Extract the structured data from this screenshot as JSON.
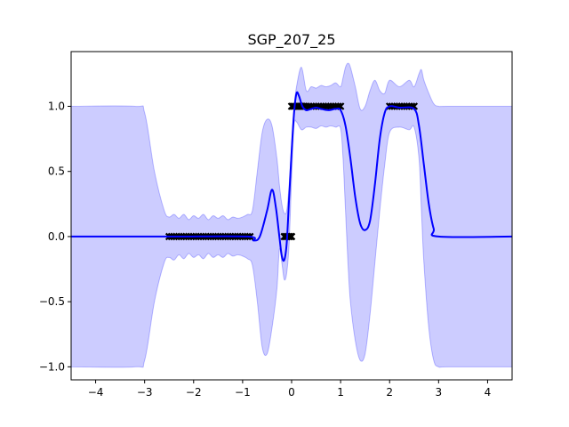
{
  "chart_data": {
    "type": "line",
    "title": "SGP_207_25",
    "xlabel": "",
    "ylabel": "",
    "xlim": [
      -4.5,
      4.5
    ],
    "ylim": [
      -1.1,
      1.42
    ],
    "grid": false,
    "xticks": [
      -4,
      -3,
      -2,
      -1,
      0,
      1,
      2,
      3,
      4
    ],
    "xtick_labels": [
      "−4",
      "−3",
      "−2",
      "−1",
      "0",
      "1",
      "2",
      "3",
      "4"
    ],
    "yticks": [
      -1.0,
      -0.5,
      0.0,
      0.5,
      1.0
    ],
    "ytick_labels": [
      "−1.0",
      "−0.5",
      "0.0",
      "0.5",
      "1.0"
    ],
    "colors": {
      "mean": "#0000ff",
      "band": "#0000ff",
      "points": "#000000"
    },
    "mean": {
      "x": [
        -4.5,
        -2.5,
        -0.9,
        -0.78,
        -0.65,
        -0.5,
        -0.4,
        -0.32,
        -0.25,
        -0.2,
        -0.15,
        -0.1,
        -0.05,
        0.0,
        0.05,
        0.1,
        0.15,
        0.22,
        0.3,
        0.4,
        0.5,
        0.6,
        0.75,
        0.9,
        1.0,
        1.1,
        1.2,
        1.3,
        1.4,
        1.5,
        1.6,
        1.7,
        1.8,
        1.9,
        2.0,
        2.2,
        2.5,
        2.6,
        2.7,
        2.8,
        2.9,
        3.0,
        4.5
      ],
      "y": [
        0.0,
        0.0,
        0.0,
        -0.03,
        0.0,
        0.2,
        0.36,
        0.22,
        0.0,
        -0.15,
        -0.18,
        -0.05,
        0.3,
        0.65,
        0.95,
        1.1,
        1.08,
        1.0,
        0.97,
        0.98,
        0.99,
        0.98,
        0.97,
        0.98,
        0.97,
        0.85,
        0.6,
        0.3,
        0.1,
        0.05,
        0.12,
        0.4,
        0.75,
        0.95,
        1.0,
        0.99,
        0.98,
        0.85,
        0.55,
        0.25,
        0.06,
        0.0,
        0.0
      ]
    },
    "band": {
      "x": [
        -4.5,
        -3.2,
        -3.0,
        -2.8,
        -2.6,
        -2.5,
        -2.4,
        -2.3,
        -2.2,
        -2.1,
        -2.0,
        -1.9,
        -1.8,
        -1.7,
        -1.6,
        -1.5,
        -1.4,
        -1.3,
        -1.2,
        -1.1,
        -1.0,
        -0.9,
        -0.8,
        -0.7,
        -0.6,
        -0.5,
        -0.4,
        -0.3,
        -0.25,
        -0.2,
        -0.15,
        -0.1,
        -0.05,
        0.0,
        0.05,
        0.1,
        0.2,
        0.3,
        0.4,
        0.5,
        0.6,
        0.7,
        0.8,
        0.9,
        1.0,
        1.05,
        1.1,
        1.15,
        1.2,
        1.3,
        1.4,
        1.5,
        1.6,
        1.7,
        1.8,
        1.9,
        2.0,
        2.2,
        2.4,
        2.5,
        2.6,
        2.65,
        2.7,
        2.8,
        2.9,
        3.0,
        3.2,
        4.5
      ],
      "upper": [
        1.0,
        1.0,
        0.95,
        0.5,
        0.2,
        0.15,
        0.17,
        0.14,
        0.17,
        0.13,
        0.16,
        0.14,
        0.17,
        0.13,
        0.16,
        0.14,
        0.16,
        0.13,
        0.15,
        0.14,
        0.15,
        0.17,
        0.2,
        0.5,
        0.8,
        0.9,
        0.85,
        0.6,
        0.4,
        0.25,
        0.18,
        0.2,
        0.4,
        0.7,
        1.0,
        1.15,
        1.3,
        1.12,
        1.15,
        1.14,
        1.16,
        1.15,
        1.16,
        1.18,
        1.15,
        1.22,
        1.3,
        1.33,
        1.3,
        1.15,
        0.98,
        1.0,
        1.12,
        1.2,
        1.12,
        1.1,
        1.2,
        1.15,
        1.2,
        1.15,
        1.25,
        1.28,
        1.2,
        1.1,
        1.02,
        1.0,
        1.0,
        1.0
      ],
      "lower": [
        -1.0,
        -1.0,
        -0.95,
        -0.5,
        -0.2,
        -0.16,
        -0.18,
        -0.14,
        -0.17,
        -0.13,
        -0.16,
        -0.14,
        -0.17,
        -0.13,
        -0.16,
        -0.14,
        -0.16,
        -0.13,
        -0.15,
        -0.14,
        -0.15,
        -0.17,
        -0.22,
        -0.5,
        -0.85,
        -0.9,
        -0.7,
        -0.4,
        -0.1,
        -0.2,
        -0.33,
        -0.28,
        -0.05,
        0.45,
        0.85,
        0.88,
        0.82,
        0.84,
        0.84,
        0.83,
        0.85,
        0.84,
        0.85,
        0.84,
        0.83,
        0.6,
        0.2,
        -0.2,
        -0.5,
        -0.8,
        -0.95,
        -0.9,
        -0.6,
        -0.2,
        0.2,
        0.55,
        0.8,
        0.84,
        0.82,
        0.84,
        0.6,
        0.2,
        -0.2,
        -0.7,
        -0.95,
        -1.0,
        -1.0,
        -1.0
      ]
    },
    "observations": {
      "x": [
        -2.5,
        -2.45,
        -2.4,
        -2.35,
        -2.3,
        -2.25,
        -2.2,
        -2.15,
        -2.1,
        -2.05,
        -2.0,
        -1.95,
        -1.9,
        -1.85,
        -1.8,
        -1.75,
        -1.7,
        -1.65,
        -1.6,
        -1.55,
        -1.5,
        -1.45,
        -1.4,
        -1.35,
        -1.3,
        -1.25,
        -1.2,
        -1.15,
        -1.1,
        -1.05,
        -1.0,
        -0.95,
        -0.9,
        -0.85,
        -0.15,
        -0.12,
        -0.09,
        -0.06,
        -0.03,
        0.0,
        0.0,
        0.03,
        0.06,
        0.1,
        0.14,
        0.18,
        0.22,
        0.26,
        0.3,
        0.35,
        0.4,
        0.45,
        0.5,
        0.55,
        0.6,
        0.65,
        0.7,
        0.75,
        0.8,
        0.85,
        0.9,
        0.95,
        1.0,
        2.0,
        2.05,
        2.1,
        2.15,
        2.2,
        2.25,
        2.3,
        2.35,
        2.4,
        2.45,
        2.5
      ],
      "y": [
        0,
        0,
        0,
        0,
        0,
        0,
        0,
        0,
        0,
        0,
        0,
        0,
        0,
        0,
        0,
        0,
        0,
        0,
        0,
        0,
        0,
        0,
        0,
        0,
        0,
        0,
        0,
        0,
        0,
        0,
        0,
        0,
        0,
        0,
        0,
        0,
        0,
        0,
        0,
        0,
        1,
        1,
        1,
        1,
        1,
        1,
        1,
        1,
        1,
        1,
        1,
        1,
        1,
        1,
        1,
        1,
        1,
        1,
        1,
        1,
        1,
        1,
        1,
        1,
        1,
        1,
        1,
        1,
        1,
        1,
        1,
        1,
        1,
        1
      ]
    }
  }
}
